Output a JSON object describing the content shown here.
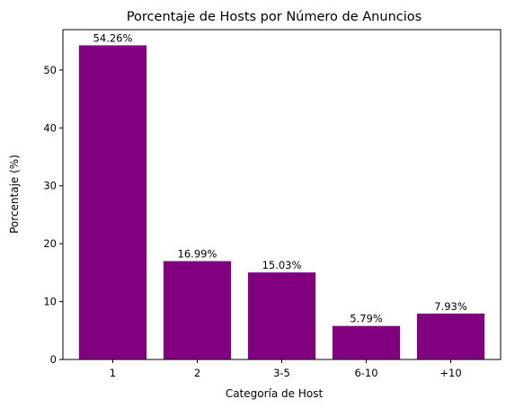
{
  "chart_data": {
    "type": "bar",
    "title": "Porcentaje de Hosts por Número de Anuncios",
    "xlabel": "Categoría de Host",
    "ylabel": "Porcentaje (%)",
    "categories": [
      "1",
      "2",
      "3-5",
      "6-10",
      "+10"
    ],
    "values": [
      54.26,
      16.99,
      15.03,
      5.79,
      7.93
    ],
    "data_labels": [
      "54.26%",
      "16.99%",
      "15.03%",
      "5.79%",
      "7.93%"
    ],
    "ylim": [
      0,
      56.97
    ],
    "yticks": [
      0,
      10,
      20,
      30,
      40,
      50
    ],
    "bar_color": "#800080",
    "grid": false,
    "legend": "none"
  }
}
